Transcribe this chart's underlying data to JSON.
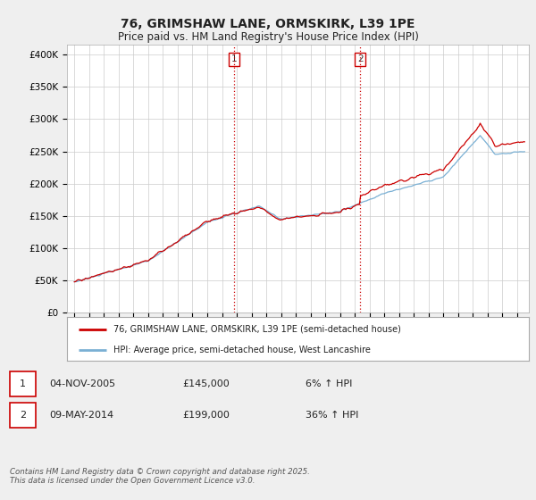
{
  "title": "76, GRIMSHAW LANE, ORMSKIRK, L39 1PE",
  "subtitle": "Price paid vs. HM Land Registry's House Price Index (HPI)",
  "ylabel_ticks": [
    "£0",
    "£50K",
    "£100K",
    "£150K",
    "£200K",
    "£250K",
    "£300K",
    "£350K",
    "£400K"
  ],
  "ytick_values": [
    0,
    50000,
    100000,
    150000,
    200000,
    250000,
    300000,
    350000,
    400000
  ],
  "ylim": [
    0,
    415000
  ],
  "xlim_start": 1994.5,
  "xlim_end": 2025.8,
  "line1_color": "#cc0000",
  "line2_color": "#7ab0d4",
  "sale1_year": 2005.84,
  "sale1_price": 145000,
  "sale1_label": "1",
  "sale2_year": 2014.36,
  "sale2_price": 199000,
  "sale2_label": "2",
  "vline_color": "#cc0000",
  "legend_line1": "76, GRIMSHAW LANE, ORMSKIRK, L39 1PE (semi-detached house)",
  "legend_line2": "HPI: Average price, semi-detached house, West Lancashire",
  "annotation1": "04-NOV-2005",
  "annotation1_price": "£145,000",
  "annotation1_hpi": "6% ↑ HPI",
  "annotation2": "09-MAY-2014",
  "annotation2_price": "£199,000",
  "annotation2_hpi": "36% ↑ HPI",
  "footer": "Contains HM Land Registry data © Crown copyright and database right 2025.\nThis data is licensed under the Open Government Licence v3.0.",
  "bg_color": "#efefef",
  "plot_bg_color": "#ffffff",
  "grid_color": "#cccccc"
}
